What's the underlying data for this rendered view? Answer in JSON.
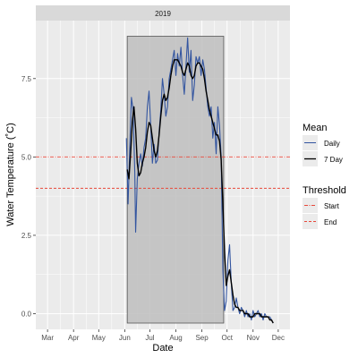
{
  "chart_data": {
    "type": "line",
    "facet_label": "2019",
    "xlabel": "Date",
    "ylabel": "Water Temperature (˚C)",
    "x_ticks": [
      "Mar",
      "Apr",
      "May",
      "Jun",
      "Jul",
      "Aug",
      "Sep",
      "Oct",
      "Nov",
      "Dec"
    ],
    "x_tick_dates": [
      "2019-03-01",
      "2019-04-01",
      "2019-05-01",
      "2019-06-01",
      "2019-07-01",
      "2019-08-01",
      "2019-09-01",
      "2019-10-01",
      "2019-11-01",
      "2019-12-01"
    ],
    "y_ticks": [
      0.0,
      2.5,
      5.0,
      7.5
    ],
    "y_tick_labels": [
      "0.0",
      "2.5",
      "5.0",
      "7.5"
    ],
    "xlim": [
      "2019-02-15",
      "2019-12-15"
    ],
    "ylim": [
      -0.5,
      9.35
    ],
    "season_box": {
      "start": "2019-06-04",
      "end": "2019-09-27",
      "ymin": -0.3,
      "ymax": 8.85,
      "fill": "#bebebe",
      "stroke": "#555555"
    },
    "thresholds": [
      {
        "name": "Start",
        "value": 5.0,
        "color": "#e8483a",
        "dash": "dotdash"
      },
      {
        "name": "End",
        "value": 4.0,
        "color": "#e8483a",
        "dash": "dashed"
      }
    ],
    "legend": {
      "mean_title": "Mean",
      "mean_items": [
        "Daily",
        "7 Day"
      ],
      "threshold_title": "Threshold",
      "threshold_items": [
        "Start",
        "End"
      ],
      "position": "right"
    },
    "colors": {
      "daily": "#3355a0",
      "seven_day": "#000000",
      "threshold": "#e8483a",
      "panel_bg": "#ebebeb",
      "strip_bg": "#d9d9d9"
    },
    "grid": true,
    "series": [
      {
        "name": "Daily",
        "points": [
          [
            "2019-06-03",
            5.6
          ],
          [
            "2019-06-05",
            3.5
          ],
          [
            "2019-06-07",
            5.3
          ],
          [
            "2019-06-09",
            6.9
          ],
          [
            "2019-06-11",
            6.5
          ],
          [
            "2019-06-13",
            4.5
          ],
          [
            "2019-06-14",
            2.6
          ],
          [
            "2019-06-16",
            4.3
          ],
          [
            "2019-06-18",
            4.8
          ],
          [
            "2019-06-20",
            5.1
          ],
          [
            "2019-06-22",
            4.7
          ],
          [
            "2019-06-24",
            5.3
          ],
          [
            "2019-06-26",
            5.6
          ],
          [
            "2019-06-28",
            6.6
          ],
          [
            "2019-06-30",
            7.1
          ],
          [
            "2019-07-02",
            6.0
          ],
          [
            "2019-07-04",
            4.8
          ],
          [
            "2019-07-06",
            5.4
          ],
          [
            "2019-07-08",
            4.8
          ],
          [
            "2019-07-10",
            4.9
          ],
          [
            "2019-07-12",
            5.8
          ],
          [
            "2019-07-14",
            6.5
          ],
          [
            "2019-07-16",
            7.5
          ],
          [
            "2019-07-18",
            7.0
          ],
          [
            "2019-07-20",
            6.3
          ],
          [
            "2019-07-22",
            6.6
          ],
          [
            "2019-07-24",
            7.5
          ],
          [
            "2019-07-26",
            7.8
          ],
          [
            "2019-07-28",
            8.1
          ],
          [
            "2019-07-30",
            8.4
          ],
          [
            "2019-08-01",
            7.6
          ],
          [
            "2019-08-03",
            8.3
          ],
          [
            "2019-08-05",
            7.9
          ],
          [
            "2019-08-07",
            8.5
          ],
          [
            "2019-08-09",
            7.6
          ],
          [
            "2019-08-11",
            7.0
          ],
          [
            "2019-08-13",
            7.9
          ],
          [
            "2019-08-15",
            8.8
          ],
          [
            "2019-08-17",
            7.7
          ],
          [
            "2019-08-19",
            8.4
          ],
          [
            "2019-08-21",
            6.8
          ],
          [
            "2019-08-23",
            7.3
          ],
          [
            "2019-08-25",
            8.2
          ],
          [
            "2019-08-27",
            8.0
          ],
          [
            "2019-08-29",
            8.2
          ],
          [
            "2019-08-31",
            7.6
          ],
          [
            "2019-09-02",
            8.1
          ],
          [
            "2019-09-04",
            7.8
          ],
          [
            "2019-09-06",
            7.2
          ],
          [
            "2019-09-08",
            6.6
          ],
          [
            "2019-09-10",
            6.3
          ],
          [
            "2019-09-12",
            6.6
          ],
          [
            "2019-09-14",
            5.6
          ],
          [
            "2019-09-16",
            6.1
          ],
          [
            "2019-09-18",
            5.1
          ],
          [
            "2019-09-20",
            6.6
          ],
          [
            "2019-09-22",
            6.0
          ],
          [
            "2019-09-24",
            5.0
          ],
          [
            "2019-09-26",
            1.4
          ],
          [
            "2019-09-28",
            0.1
          ],
          [
            "2019-09-30",
            0.4
          ],
          [
            "2019-10-02",
            1.7
          ],
          [
            "2019-10-04",
            2.2
          ],
          [
            "2019-10-06",
            1.0
          ],
          [
            "2019-10-08",
            0.1
          ],
          [
            "2019-10-10",
            0.2
          ],
          [
            "2019-10-12",
            0.5
          ],
          [
            "2019-10-14",
            0.2
          ],
          [
            "2019-10-16",
            0.0
          ],
          [
            "2019-10-18",
            0.2
          ],
          [
            "2019-10-20",
            0.1
          ],
          [
            "2019-10-22",
            -0.1
          ],
          [
            "2019-10-24",
            0.1
          ],
          [
            "2019-10-26",
            -0.1
          ],
          [
            "2019-10-28",
            0.0
          ],
          [
            "2019-10-30",
            -0.2
          ],
          [
            "2019-11-01",
            0.1
          ],
          [
            "2019-11-03",
            -0.1
          ],
          [
            "2019-11-05",
            0.0
          ],
          [
            "2019-11-07",
            0.1
          ],
          [
            "2019-11-09",
            -0.1
          ],
          [
            "2019-11-11",
            0.0
          ],
          [
            "2019-11-13",
            -0.2
          ],
          [
            "2019-11-15",
            0.0
          ],
          [
            "2019-11-17",
            -0.1
          ],
          [
            "2019-11-19",
            -0.1
          ],
          [
            "2019-11-21",
            -0.1
          ],
          [
            "2019-11-23",
            -0.2
          ],
          [
            "2019-11-25",
            -0.3
          ]
        ]
      },
      {
        "name": "7 Day",
        "points": [
          [
            "2019-06-04",
            4.6
          ],
          [
            "2019-06-06",
            4.3
          ],
          [
            "2019-06-08",
            5.1
          ],
          [
            "2019-06-10",
            6.1
          ],
          [
            "2019-06-12",
            6.6
          ],
          [
            "2019-06-14",
            5.9
          ],
          [
            "2019-06-16",
            4.8
          ],
          [
            "2019-06-18",
            4.4
          ],
          [
            "2019-06-20",
            4.5
          ],
          [
            "2019-06-22",
            4.8
          ],
          [
            "2019-06-24",
            5.0
          ],
          [
            "2019-06-26",
            5.3
          ],
          [
            "2019-06-28",
            5.8
          ],
          [
            "2019-06-30",
            6.1
          ],
          [
            "2019-07-02",
            6.0
          ],
          [
            "2019-07-04",
            5.6
          ],
          [
            "2019-07-06",
            5.2
          ],
          [
            "2019-07-08",
            5.0
          ],
          [
            "2019-07-10",
            5.2
          ],
          [
            "2019-07-12",
            5.7
          ],
          [
            "2019-07-14",
            6.3
          ],
          [
            "2019-07-16",
            6.8
          ],
          [
            "2019-07-18",
            7.0
          ],
          [
            "2019-07-20",
            6.8
          ],
          [
            "2019-07-22",
            6.9
          ],
          [
            "2019-07-24",
            7.2
          ],
          [
            "2019-07-26",
            7.6
          ],
          [
            "2019-07-28",
            7.9
          ],
          [
            "2019-07-30",
            8.1
          ],
          [
            "2019-08-01",
            8.1
          ],
          [
            "2019-08-03",
            8.1
          ],
          [
            "2019-08-05",
            8.0
          ],
          [
            "2019-08-07",
            7.9
          ],
          [
            "2019-08-09",
            7.7
          ],
          [
            "2019-08-11",
            7.6
          ],
          [
            "2019-08-13",
            7.8
          ],
          [
            "2019-08-15",
            8.0
          ],
          [
            "2019-08-17",
            7.9
          ],
          [
            "2019-08-19",
            7.6
          ],
          [
            "2019-08-21",
            7.5
          ],
          [
            "2019-08-23",
            7.6
          ],
          [
            "2019-08-25",
            7.9
          ],
          [
            "2019-08-27",
            8.0
          ],
          [
            "2019-08-29",
            8.0
          ],
          [
            "2019-08-31",
            7.9
          ],
          [
            "2019-09-02",
            7.8
          ],
          [
            "2019-09-04",
            7.5
          ],
          [
            "2019-09-06",
            7.1
          ],
          [
            "2019-09-08",
            6.8
          ],
          [
            "2019-09-10",
            6.5
          ],
          [
            "2019-09-12",
            6.3
          ],
          [
            "2019-09-14",
            6.1
          ],
          [
            "2019-09-16",
            5.9
          ],
          [
            "2019-09-18",
            5.7
          ],
          [
            "2019-09-20",
            5.7
          ],
          [
            "2019-09-22",
            5.5
          ],
          [
            "2019-09-24",
            4.9
          ],
          [
            "2019-09-26",
            3.5
          ],
          [
            "2019-09-28",
            2.0
          ],
          [
            "2019-09-30",
            0.9
          ],
          [
            "2019-10-02",
            1.2
          ],
          [
            "2019-10-04",
            1.4
          ],
          [
            "2019-10-06",
            1.0
          ],
          [
            "2019-10-08",
            0.6
          ],
          [
            "2019-10-10",
            0.3
          ],
          [
            "2019-10-12",
            0.2
          ],
          [
            "2019-10-14",
            0.2
          ],
          [
            "2019-10-16",
            0.1
          ],
          [
            "2019-10-18",
            0.1
          ],
          [
            "2019-10-20",
            0.1
          ],
          [
            "2019-10-22",
            0.0
          ],
          [
            "2019-10-24",
            0.0
          ],
          [
            "2019-10-26",
            0.0
          ],
          [
            "2019-10-28",
            -0.1
          ],
          [
            "2019-10-30",
            -0.1
          ],
          [
            "2019-11-01",
            -0.1
          ],
          [
            "2019-11-03",
            0.0
          ],
          [
            "2019-11-05",
            0.0
          ],
          [
            "2019-11-07",
            0.0
          ],
          [
            "2019-11-09",
            0.0
          ],
          [
            "2019-11-11",
            -0.1
          ],
          [
            "2019-11-13",
            -0.1
          ],
          [
            "2019-11-15",
            -0.1
          ],
          [
            "2019-11-17",
            -0.1
          ],
          [
            "2019-11-19",
            -0.1
          ],
          [
            "2019-11-21",
            -0.2
          ],
          [
            "2019-11-23",
            -0.2
          ],
          [
            "2019-11-25",
            -0.3
          ]
        ]
      }
    ]
  }
}
